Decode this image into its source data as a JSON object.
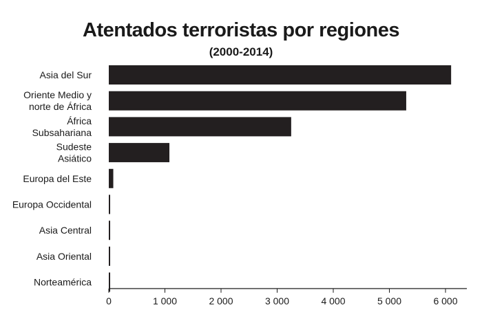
{
  "chart_data": {
    "type": "bar",
    "orientation": "horizontal",
    "title": "Atentados terroristas por regiones",
    "subtitle": "(2000-2014)",
    "categories": [
      [
        "Asia del Sur"
      ],
      [
        "Oriente Medio y",
        "norte de África"
      ],
      [
        "África",
        "Subsahariana"
      ],
      [
        "Sudeste",
        "Asiático"
      ],
      [
        "Europa del Este"
      ],
      [
        "Europa Occidental"
      ],
      [
        "Asia Central"
      ],
      [
        "Asia Oriental"
      ],
      [
        "Norteamérica"
      ]
    ],
    "values": [
      6100,
      5300,
      3250,
      1080,
      80,
      15,
      12,
      10,
      8
    ],
    "xlim": [
      0,
      6250
    ],
    "xticks": [
      0,
      1000,
      2000,
      3000,
      4000,
      5000,
      6000
    ],
    "xtick_labels": [
      "0",
      "1 000",
      "2 000",
      "3 000",
      "4 000",
      "5 000",
      "6 000"
    ],
    "bar_color": "#231f20",
    "grid": false,
    "legend": "none"
  }
}
